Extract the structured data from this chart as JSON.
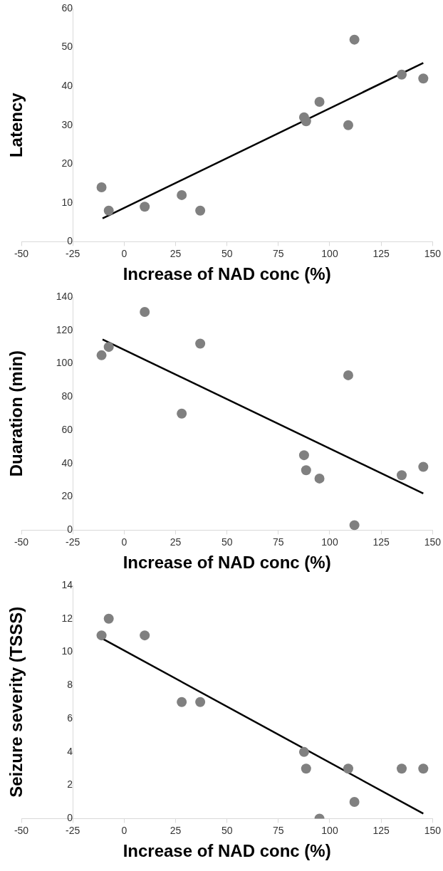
{
  "chart_data": [
    {
      "type": "scatter",
      "xlabel": "Increase of NAD conc (%)",
      "ylabel": "Latency",
      "xlim": [
        -50,
        150
      ],
      "xticks": [
        -50,
        -25,
        0,
        25,
        50,
        75,
        100,
        125,
        150
      ],
      "ylim": [
        0,
        60
      ],
      "yticks": [
        0,
        10,
        20,
        30,
        40,
        50,
        60
      ],
      "grid": false,
      "legend": false,
      "series": [
        {
          "type": "scatter",
          "color": "#808080",
          "marker": "circle",
          "x": [
            -11,
            -7.5,
            10,
            28,
            37,
            87.5,
            88.5,
            95,
            109,
            112,
            135,
            145.5
          ],
          "values": [
            14,
            8,
            9,
            12,
            8,
            32,
            31,
            36,
            30,
            52,
            43,
            42
          ]
        },
        {
          "type": "line",
          "color": "#000000",
          "marker": "none",
          "line_style": "solid",
          "x": [
            -10.5,
            145.5
          ],
          "values": [
            6,
            46
          ]
        }
      ]
    },
    {
      "type": "scatter",
      "xlabel": "Increase of NAD conc (%)",
      "ylabel": "Duaration (min)",
      "xlim": [
        -50,
        150
      ],
      "xticks": [
        -50,
        -25,
        0,
        25,
        50,
        75,
        100,
        125,
        150
      ],
      "ylim": [
        0,
        140
      ],
      "yticks": [
        0,
        20,
        40,
        60,
        80,
        100,
        120,
        140
      ],
      "grid": false,
      "legend": false,
      "series": [
        {
          "type": "scatter",
          "color": "#808080",
          "marker": "circle",
          "x": [
            -11,
            -7.5,
            10,
            28,
            37,
            87.5,
            88.5,
            95,
            109,
            112,
            135,
            145.5
          ],
          "values": [
            105,
            110,
            131,
            70,
            112,
            45,
            36,
            31,
            93,
            3,
            33,
            38
          ]
        },
        {
          "type": "line",
          "color": "#000000",
          "marker": "none",
          "line_style": "solid",
          "x": [
            -10.5,
            145.5
          ],
          "values": [
            114.5,
            22
          ]
        }
      ]
    },
    {
      "type": "scatter",
      "xlabel": "Increase of NAD conc (%)",
      "ylabel": "Seizure severity (TSSS)",
      "xlim": [
        -50,
        150
      ],
      "xticks": [
        -50,
        -25,
        0,
        25,
        50,
        75,
        100,
        125,
        150
      ],
      "ylim": [
        0,
        14
      ],
      "yticks": [
        0,
        2,
        4,
        6,
        8,
        10,
        12,
        14
      ],
      "grid": false,
      "legend": false,
      "series": [
        {
          "type": "scatter",
          "color": "#808080",
          "marker": "circle",
          "x": [
            -11,
            -7.5,
            10,
            28,
            37,
            87.5,
            88.5,
            95,
            109,
            112,
            135,
            145.5
          ],
          "values": [
            11,
            12,
            11,
            7,
            7,
            4,
            3,
            0,
            3,
            1,
            3,
            3
          ]
        },
        {
          "type": "line",
          "color": "#000000",
          "marker": "none",
          "line_style": "solid",
          "x": [
            -10.5,
            145.5
          ],
          "values": [
            10.8,
            0.3
          ]
        }
      ]
    }
  ]
}
